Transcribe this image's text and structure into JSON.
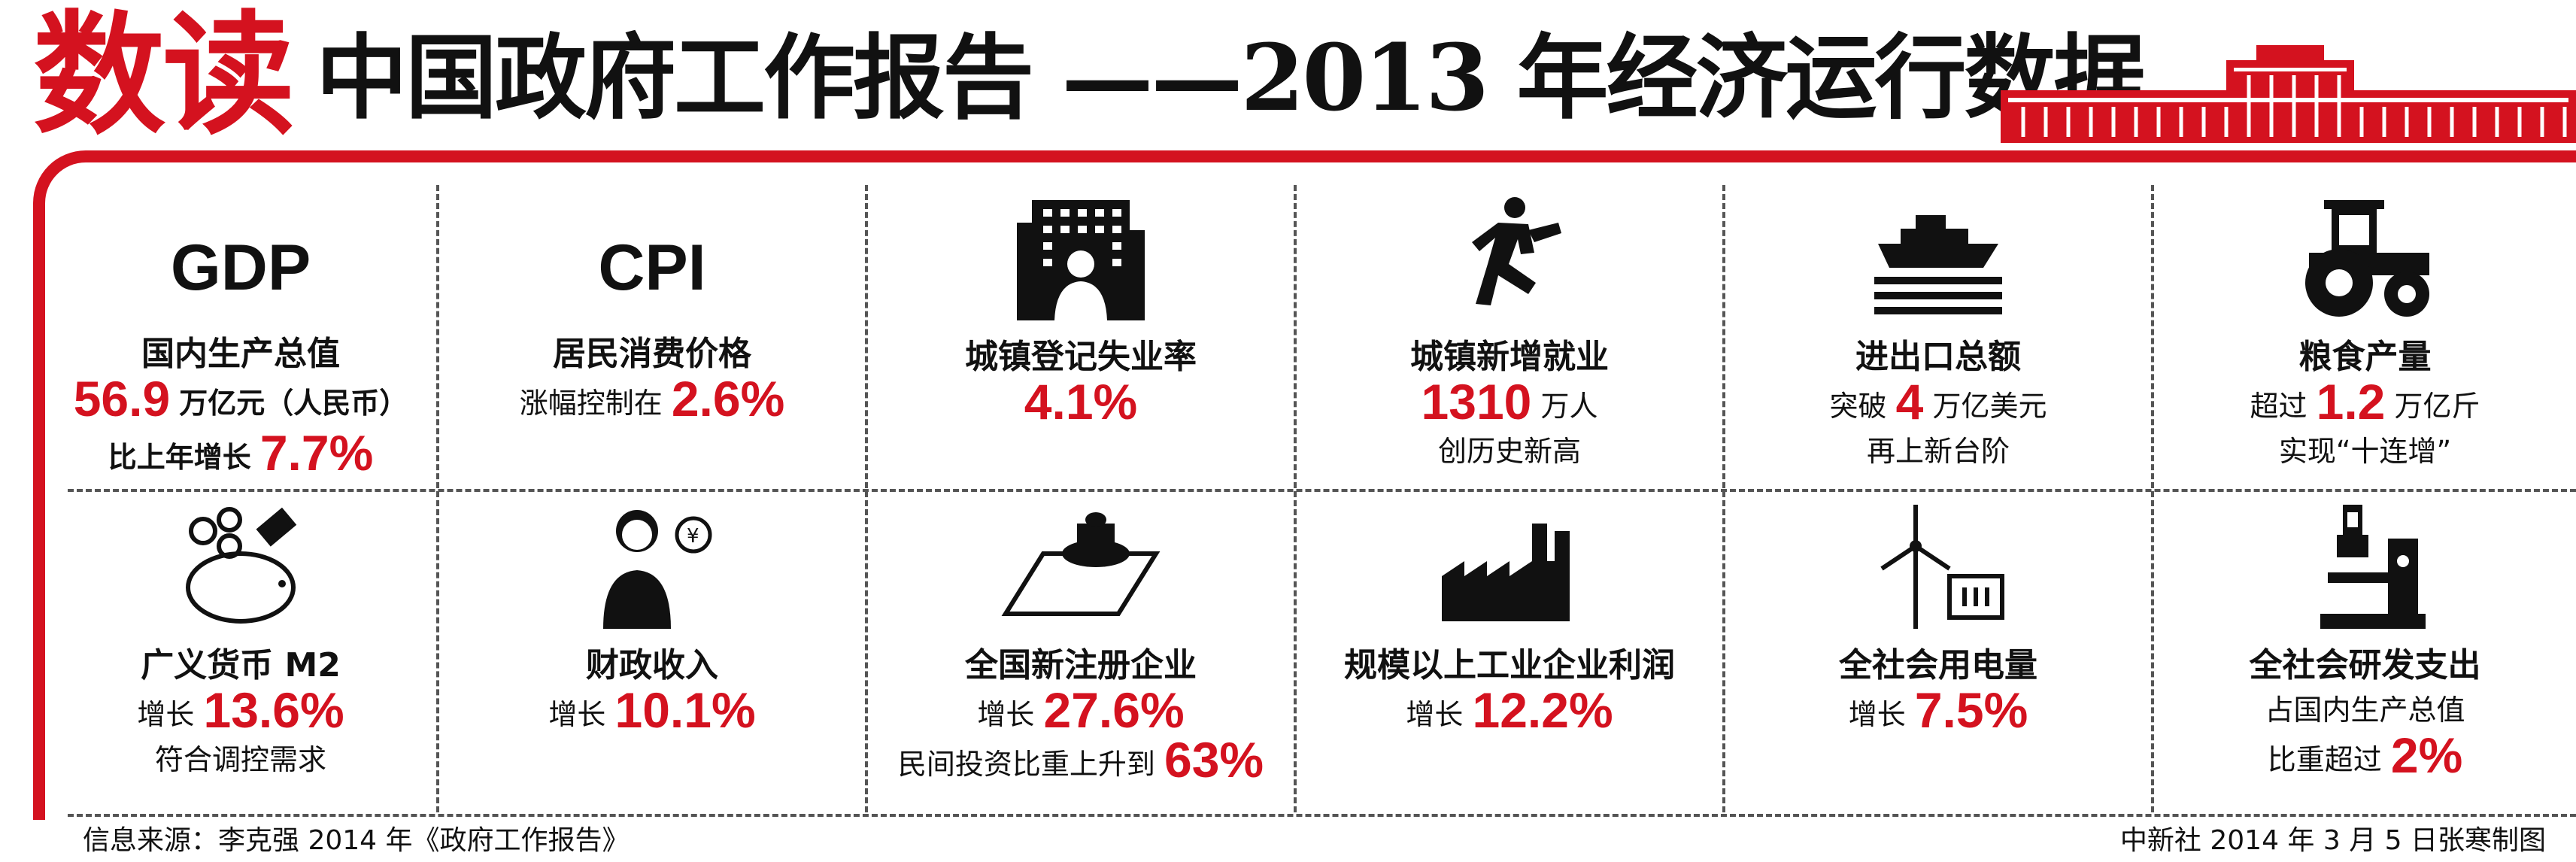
{
  "header": {
    "brand": "数读",
    "title_main": "中国政府工作报告",
    "title_sub": "——2013 年经济运行数据"
  },
  "colors": {
    "accent": "#d4121f",
    "text": "#111111"
  },
  "items": [
    {
      "icon": "gdp-text",
      "heading": "GDP",
      "label": "国内生产总值",
      "line1_value": "56.9",
      "line1_suffix": "万亿元（人民币）",
      "line2_prefix": "比上年增长",
      "line2_value": "7.7%"
    },
    {
      "icon": "cpi-text",
      "heading": "CPI",
      "label": "居民消费价格",
      "line1_prefix": "涨幅控制在",
      "line1_value": "2.6%"
    },
    {
      "icon": "building-icon",
      "label": "城镇登记失业率",
      "line1_value": "4.1%"
    },
    {
      "icon": "running-man-icon",
      "label": "城镇新增就业",
      "line1_value": "1310",
      "line1_suffix": "万人",
      "line2": "创历史新高"
    },
    {
      "icon": "ship-icon",
      "label": "进出口总额",
      "line1_prefix": "突破",
      "line1_value": "4",
      "line1_suffix": "万亿美元",
      "line2": "再上新台阶"
    },
    {
      "icon": "tractor-icon",
      "label": "粮食产量",
      "line1_prefix": "超过",
      "line1_value": "1.2",
      "line1_suffix": "万亿斤",
      "line2": "实现“十连增”"
    },
    {
      "icon": "piggy-bank-icon",
      "label": "广义货币 M2",
      "line1_prefix": "增长",
      "line1_value": "13.6%",
      "line2": "符合调控需求"
    },
    {
      "icon": "clerk-icon",
      "label": "财政收入",
      "line1_prefix": "增长",
      "line1_value": "10.1%"
    },
    {
      "icon": "stamp-icon",
      "label": "全国新注册企业",
      "line1_prefix": "增长",
      "line1_value": "27.6%",
      "line2_prefix": "民间投资比重上升到",
      "line2_value": "63%"
    },
    {
      "icon": "factory-icon",
      "label": "规模以上工业企业利润",
      "line1_prefix": "增长",
      "line1_value": "12.2%"
    },
    {
      "icon": "wind-turbine-icon",
      "label": "全社会用电量",
      "line1_prefix": "增长",
      "line1_value": "7.5%"
    },
    {
      "icon": "microscope-icon",
      "label": "全社会研发支出",
      "line1": "占国内生产总值",
      "line2_prefix": "比重超过",
      "line2_value": "2%"
    }
  ],
  "footer": {
    "source": "信息来源：李克强 2014 年《政府工作报告》",
    "credit": "中新社 2014 年 3 月 5 日张寒制图"
  }
}
